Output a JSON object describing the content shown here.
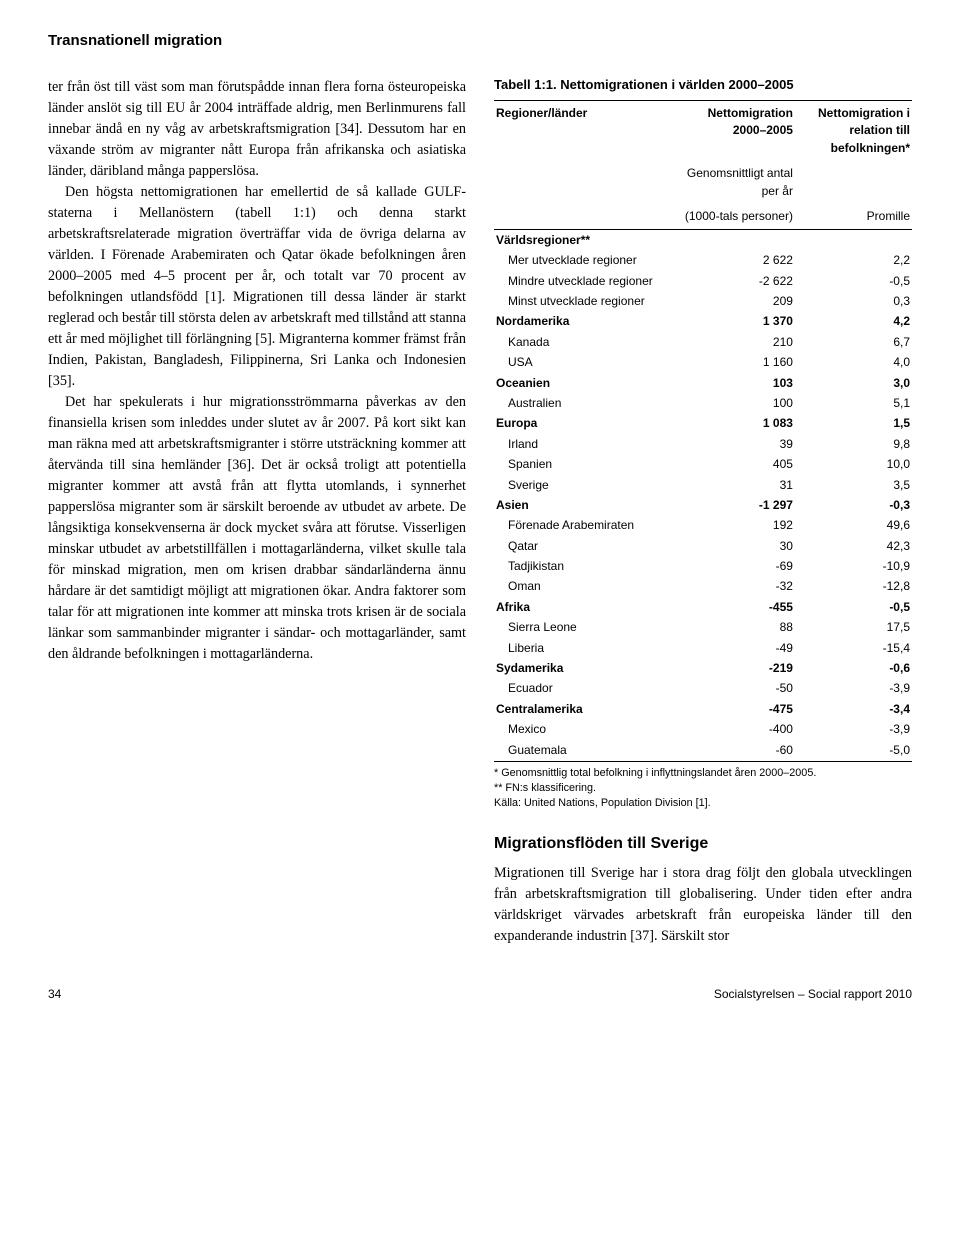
{
  "header": {
    "title": "Transnationell migration"
  },
  "left": {
    "p1": "ter från öst till väst som man förutspådde innan flera forna östeuropeiska länder anslöt sig till EU år 2004 inträffade aldrig, men Berlinmurens fall innebar ändå en ny våg av arbetskraftsmigration [34]. Dessutom har en växande ström av migranter nått Europa från afrikanska och asiatiska länder, däribland många papperslösa.",
    "p2": "Den högsta nettomigrationen har emellertid de så kallade GULF-staterna i Mellanöstern (tabell 1:1) och denna starkt arbetskraftsrelaterade migration överträffar vida de övriga delarna av världen. I Förenade Arabemiraten och Qatar ökade befolkningen åren 2000–2005 med 4–5 procent per år, och totalt var 70 procent av befolkningen utlandsfödd [1]. Migrationen till dessa länder är starkt reglerad och består till största delen av arbetskraft med tillstånd att stanna ett år med möjlighet till förlängning [5]. Migranterna kommer främst från Indien, Pakistan, Bangladesh, Filippinerna, Sri Lanka och Indonesien [35].",
    "p3": "Det har spekulerats i hur migrationsströmmarna påverkas av den finansiella krisen som inleddes under slutet av år 2007. På kort sikt kan man räkna med att arbetskraftsmigranter i större utsträckning kommer att återvända till sina hemländer [36]. Det är också troligt att potentiella migranter kommer att avstå från att flytta utomlands, i synnerhet papperslösa migranter som är särskilt beroende av utbudet av arbete. De långsiktiga konsekvenserna är dock mycket svåra att förutse. Visserligen minskar utbudet av arbetstillfällen i mottagarländerna, vilket skulle tala för minskad migration, men om krisen drabbar sändarländerna ännu hårdare är det samtidigt möjligt att migrationen ökar. Andra faktorer som talar för att migrationen inte kommer att minska trots krisen är de sociala länkar som sammanbinder migranter i sändar- och mottagarländer, samt den åldrande befolkningen i mottagarländerna."
  },
  "table": {
    "title": "Tabell 1:1. Nettomigrationen i världen 2000–2005",
    "head": {
      "c1": "Regioner/länder",
      "c2a": "Nettomigration 2000–2005",
      "c2b": "Genomsnittligt antal per år",
      "c2c": "(1000-tals personer)",
      "c3a": "Nettomigration i relation till befolkningen*",
      "c3b": "Promille"
    },
    "rows": [
      {
        "l": "Världsregioner**",
        "v1": "",
        "v2": "",
        "bold": true,
        "sub": false
      },
      {
        "l": "Mer utvecklade regioner",
        "v1": "2 622",
        "v2": "2,2",
        "bold": false,
        "sub": true
      },
      {
        "l": "Mindre utvecklade regioner",
        "v1": "-2 622",
        "v2": "-0,5",
        "bold": false,
        "sub": true
      },
      {
        "l": "Minst utvecklade regioner",
        "v1": "209",
        "v2": "0,3",
        "bold": false,
        "sub": true
      },
      {
        "l": "Nordamerika",
        "v1": "1 370",
        "v2": "4,2",
        "bold": true,
        "sub": false
      },
      {
        "l": "Kanada",
        "v1": "210",
        "v2": "6,7",
        "bold": false,
        "sub": true
      },
      {
        "l": "USA",
        "v1": "1 160",
        "v2": "4,0",
        "bold": false,
        "sub": true
      },
      {
        "l": "Oceanien",
        "v1": "103",
        "v2": "3,0",
        "bold": true,
        "sub": false
      },
      {
        "l": "Australien",
        "v1": "100",
        "v2": "5,1",
        "bold": false,
        "sub": true
      },
      {
        "l": "Europa",
        "v1": "1 083",
        "v2": "1,5",
        "bold": true,
        "sub": false
      },
      {
        "l": "Irland",
        "v1": "39",
        "v2": "9,8",
        "bold": false,
        "sub": true
      },
      {
        "l": "Spanien",
        "v1": "405",
        "v2": "10,0",
        "bold": false,
        "sub": true
      },
      {
        "l": "Sverige",
        "v1": "31",
        "v2": "3,5",
        "bold": false,
        "sub": true
      },
      {
        "l": "Asien",
        "v1": "-1 297",
        "v2": "-0,3",
        "bold": true,
        "sub": false
      },
      {
        "l": "Förenade Arabemiraten",
        "v1": "192",
        "v2": "49,6",
        "bold": false,
        "sub": true
      },
      {
        "l": "Qatar",
        "v1": "30",
        "v2": "42,3",
        "bold": false,
        "sub": true
      },
      {
        "l": "Tadjikistan",
        "v1": "-69",
        "v2": "-10,9",
        "bold": false,
        "sub": true
      },
      {
        "l": "Oman",
        "v1": "-32",
        "v2": "-12,8",
        "bold": false,
        "sub": true
      },
      {
        "l": "Afrika",
        "v1": "-455",
        "v2": "-0,5",
        "bold": true,
        "sub": false
      },
      {
        "l": "Sierra Leone",
        "v1": "88",
        "v2": "17,5",
        "bold": false,
        "sub": true
      },
      {
        "l": "Liberia",
        "v1": "-49",
        "v2": "-15,4",
        "bold": false,
        "sub": true
      },
      {
        "l": "Sydamerika",
        "v1": "-219",
        "v2": "-0,6",
        "bold": true,
        "sub": false
      },
      {
        "l": "Ecuador",
        "v1": "-50",
        "v2": "-3,9",
        "bold": false,
        "sub": true
      },
      {
        "l": "Centralamerika",
        "v1": "-475",
        "v2": "-3,4",
        "bold": true,
        "sub": false
      },
      {
        "l": "Mexico",
        "v1": "-400",
        "v2": "-3,9",
        "bold": false,
        "sub": true
      },
      {
        "l": "Guatemala",
        "v1": "-60",
        "v2": "-5,0",
        "bold": false,
        "sub": true
      }
    ],
    "notes": {
      "n1": "* Genomsnittlig total befolkning i inflyttningslandet åren 2000–2005.",
      "n2": "** FN:s klassificering.",
      "n3": "Källa: United Nations, Population Division [1]."
    }
  },
  "right": {
    "h2": "Migrationsflöden till Sverige",
    "body": "Migrationen till Sverige har i stora drag följt den globala utvecklingen från arbetskraftsmigration till globalisering. Under tiden efter andra världskriget värvades arbetskraft från europeiska länder till den expanderande industrin [37]. Särskilt stor"
  },
  "footer": {
    "page": "34",
    "src": "Socialstyrelsen – Social rapport 2010"
  }
}
